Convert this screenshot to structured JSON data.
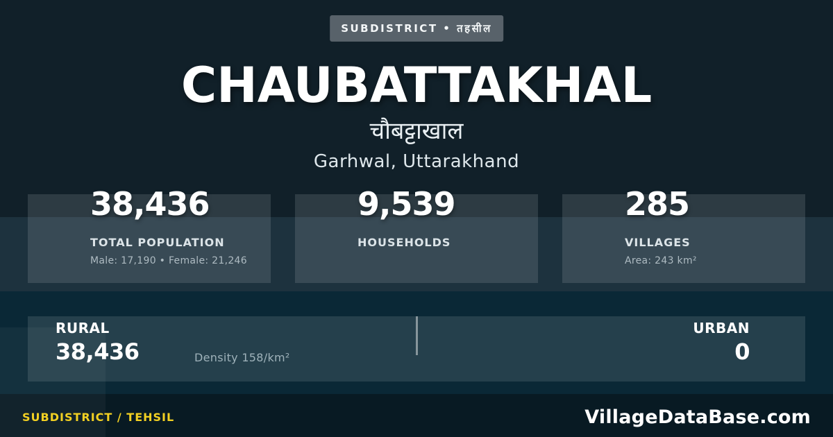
{
  "badge": {
    "label": "SUBDISTRICT • तहसील"
  },
  "header": {
    "title": "CHAUBATTAKHAL",
    "title_hindi": "चौबट्टाखाल",
    "location": "Garhwal, Uttarakhand"
  },
  "stats": {
    "cards": [
      {
        "value": "38,436",
        "label": "TOTAL POPULATION",
        "sub": "Male: 17,190 • Female: 21,246"
      },
      {
        "value": "9,539",
        "label": "HOUSEHOLDS",
        "sub": ""
      },
      {
        "value": "285",
        "label": "VILLAGES",
        "sub": "Area: 243 km²"
      }
    ]
  },
  "split": {
    "rural_label": "RURAL",
    "rural_value": "38,436",
    "density": "Density 158/km²",
    "urban_label": "URBAN",
    "urban_value": "0"
  },
  "footer": {
    "left": "SUBDISTRICT / TEHSIL",
    "right": "VillageDataBase.com"
  },
  "colors": {
    "background": "#112029",
    "stat_band": "rgba(140,215,255,0.10)",
    "blue_band": "#0a2836",
    "footer_band": "#081a23",
    "card_overlay": "rgba(255,255,255,0.12)",
    "badge_bg": "#58626a",
    "accent_yellow": "#f2d022",
    "text_primary": "#ffffff",
    "text_muted": "#aebbc2"
  }
}
